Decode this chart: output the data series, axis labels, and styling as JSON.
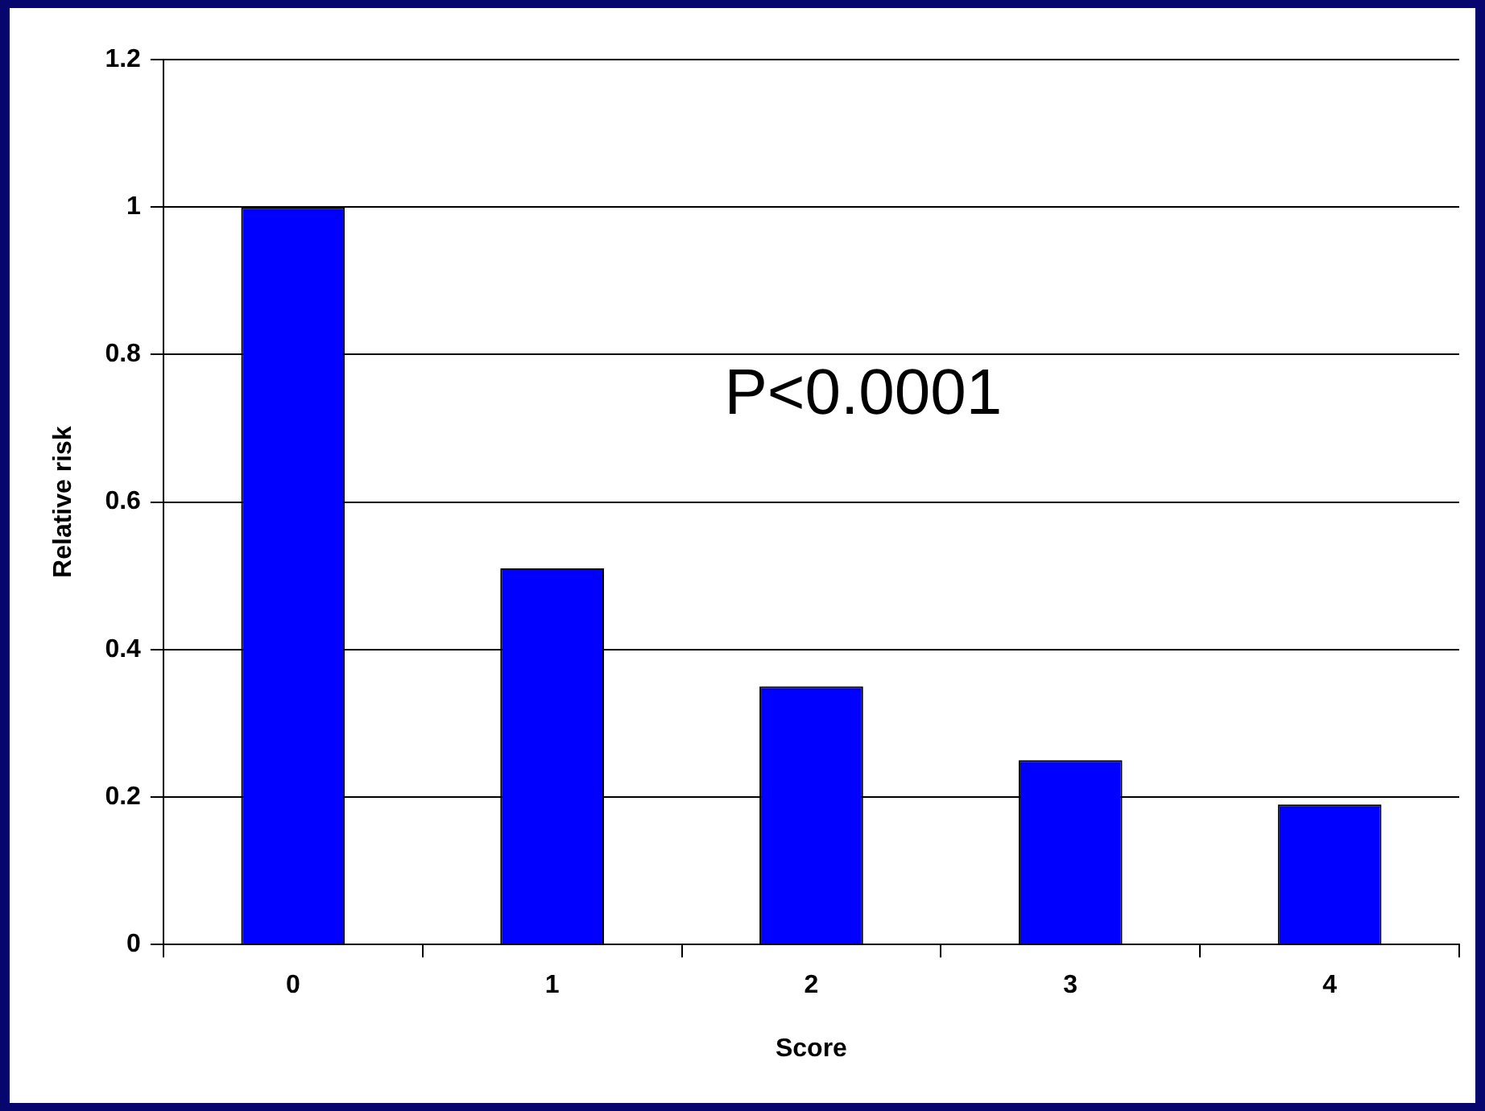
{
  "chart_data": {
    "type": "bar",
    "xlabel": "Score",
    "ylabel": "Relative risk",
    "categories": [
      "0",
      "1",
      "2",
      "3",
      "4"
    ],
    "values": [
      1,
      0.51,
      0.35,
      0.25,
      0.19
    ],
    "color": "#0000ff",
    "ylim": [
      0,
      1.2
    ],
    "yticks": [
      0,
      0.2,
      0.4,
      0.6,
      0.8,
      1,
      1.2
    ],
    "grid": "y",
    "legend": false,
    "annotations": [
      "P<0.0001"
    ]
  }
}
